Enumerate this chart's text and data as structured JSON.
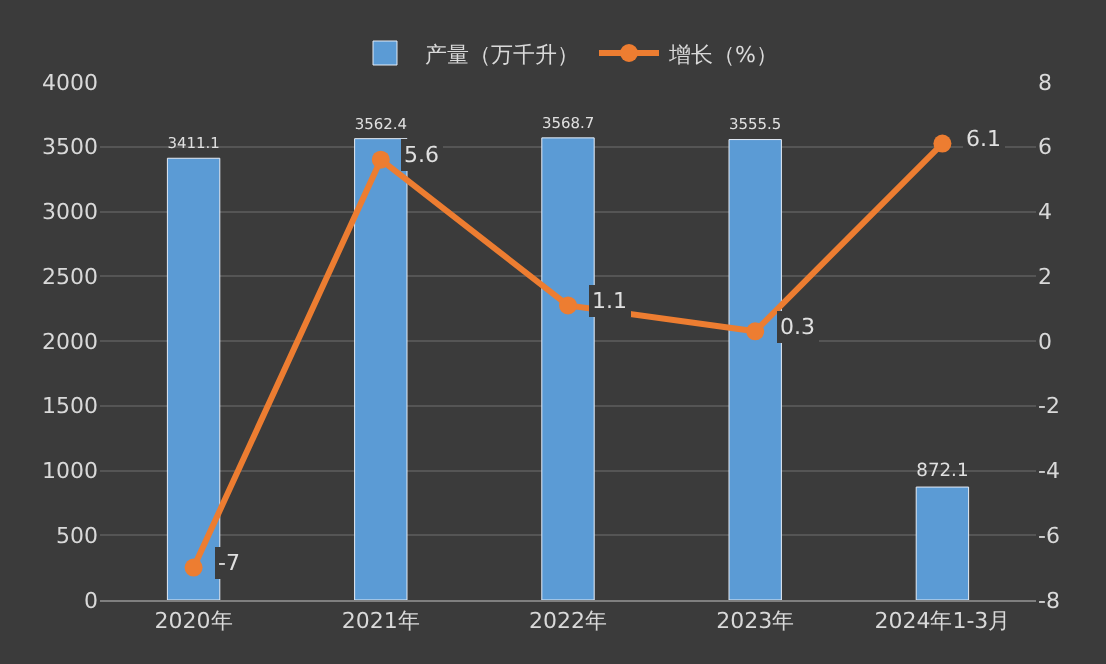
{
  "chart_data": {
    "type": "bar",
    "categories": [
      "2020年",
      "2021年",
      "2022年",
      "2023年",
      "2024年1-3月"
    ],
    "series": [
      {
        "name": "产量（万千升）",
        "color": "#5b9bd5",
        "values": [
          3411.1,
          3562.4,
          3568.7,
          3555.5,
          872.1
        ]
      },
      {
        "name": "增长（%）",
        "type": "line",
        "axis": "y2",
        "color": "#ed7d31",
        "values": [
          -7,
          5.6,
          1.1,
          0.3,
          6.1
        ]
      }
    ],
    "ylim": [
      0,
      4000
    ],
    "yticks": [
      0,
      500,
      1000,
      1500,
      2000,
      2500,
      3000,
      3500,
      4000
    ],
    "y2lim": [
      -8,
      8
    ],
    "y2ticks": [
      -8,
      -6,
      -4,
      -2,
      0,
      2,
      4,
      6,
      8
    ],
    "data_labels": true,
    "grid": "y",
    "legend": "top",
    "marker": "circle",
    "line_style": "solid"
  }
}
